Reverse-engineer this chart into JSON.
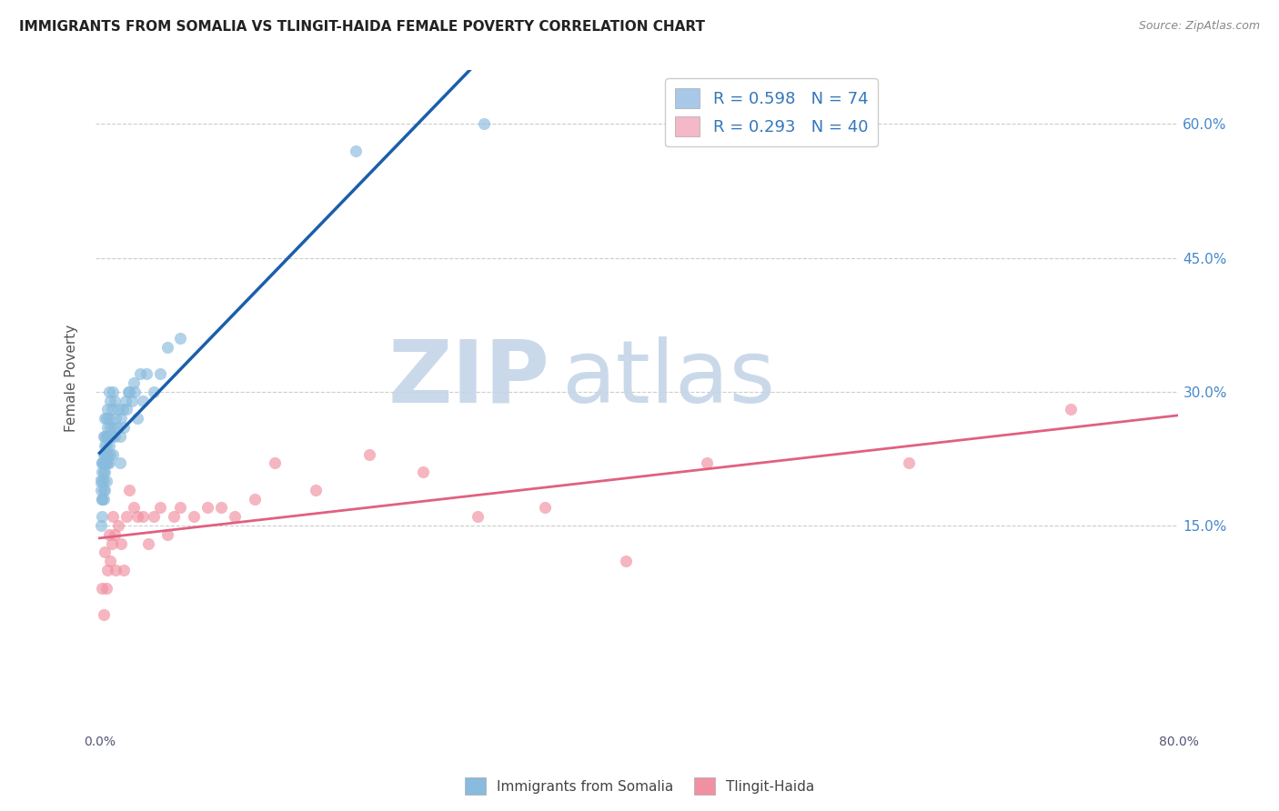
{
  "title": "IMMIGRANTS FROM SOMALIA VS TLINGIT-HAIDA FEMALE POVERTY CORRELATION CHART",
  "source": "Source: ZipAtlas.com",
  "ylabel": "Female Poverty",
  "ytick_labels": [
    "15.0%",
    "30.0%",
    "45.0%",
    "60.0%"
  ],
  "ytick_values": [
    0.15,
    0.3,
    0.45,
    0.6
  ],
  "xlim": [
    -0.003,
    0.8
  ],
  "ylim": [
    -0.03,
    0.66
  ],
  "legend_r_entries": [
    {
      "label": "R = 0.598   N = 74",
      "color": "#a8c8e8"
    },
    {
      "label": "R = 0.293   N = 40",
      "color": "#f4b8c8"
    }
  ],
  "somalia_color": "#88bbdd",
  "tlingit_color": "#f090a0",
  "somalia_line_color": "#1a5faa",
  "tlingit_line_color": "#e06080",
  "somalia_points_x": [
    0.0005,
    0.001,
    0.001,
    0.0015,
    0.0015,
    0.002,
    0.002,
    0.002,
    0.002,
    0.002,
    0.003,
    0.003,
    0.003,
    0.003,
    0.003,
    0.003,
    0.003,
    0.004,
    0.004,
    0.004,
    0.004,
    0.004,
    0.004,
    0.004,
    0.005,
    0.005,
    0.005,
    0.005,
    0.005,
    0.005,
    0.006,
    0.006,
    0.006,
    0.006,
    0.006,
    0.007,
    0.007,
    0.007,
    0.007,
    0.008,
    0.008,
    0.008,
    0.009,
    0.009,
    0.01,
    0.01,
    0.01,
    0.011,
    0.011,
    0.012,
    0.013,
    0.014,
    0.015,
    0.015,
    0.016,
    0.017,
    0.018,
    0.019,
    0.02,
    0.021,
    0.022,
    0.024,
    0.025,
    0.026,
    0.028,
    0.03,
    0.032,
    0.035,
    0.04,
    0.045,
    0.05,
    0.06,
    0.19,
    0.285
  ],
  "somalia_points_y": [
    0.2,
    0.15,
    0.19,
    0.21,
    0.18,
    0.22,
    0.18,
    0.2,
    0.16,
    0.22,
    0.25,
    0.22,
    0.2,
    0.18,
    0.23,
    0.19,
    0.21,
    0.25,
    0.27,
    0.23,
    0.21,
    0.19,
    0.22,
    0.24,
    0.27,
    0.24,
    0.22,
    0.25,
    0.2,
    0.23,
    0.28,
    0.26,
    0.22,
    0.25,
    0.23,
    0.3,
    0.27,
    0.24,
    0.22,
    0.29,
    0.26,
    0.23,
    0.28,
    0.25,
    0.3,
    0.26,
    0.23,
    0.29,
    0.25,
    0.27,
    0.26,
    0.28,
    0.25,
    0.22,
    0.27,
    0.28,
    0.26,
    0.29,
    0.28,
    0.3,
    0.3,
    0.29,
    0.31,
    0.3,
    0.27,
    0.32,
    0.29,
    0.32,
    0.3,
    0.32,
    0.35,
    0.36,
    0.57,
    0.6
  ],
  "tlingit_points_x": [
    0.002,
    0.003,
    0.004,
    0.005,
    0.006,
    0.007,
    0.008,
    0.009,
    0.01,
    0.011,
    0.012,
    0.014,
    0.016,
    0.018,
    0.02,
    0.022,
    0.025,
    0.028,
    0.032,
    0.036,
    0.04,
    0.045,
    0.05,
    0.055,
    0.06,
    0.07,
    0.08,
    0.09,
    0.1,
    0.115,
    0.13,
    0.16,
    0.2,
    0.24,
    0.28,
    0.33,
    0.39,
    0.45,
    0.6,
    0.72
  ],
  "tlingit_points_y": [
    0.08,
    0.05,
    0.12,
    0.08,
    0.1,
    0.14,
    0.11,
    0.13,
    0.16,
    0.14,
    0.1,
    0.15,
    0.13,
    0.1,
    0.16,
    0.19,
    0.17,
    0.16,
    0.16,
    0.13,
    0.16,
    0.17,
    0.14,
    0.16,
    0.17,
    0.16,
    0.17,
    0.17,
    0.16,
    0.18,
    0.22,
    0.19,
    0.23,
    0.21,
    0.16,
    0.17,
    0.11,
    0.22,
    0.22,
    0.28
  ]
}
